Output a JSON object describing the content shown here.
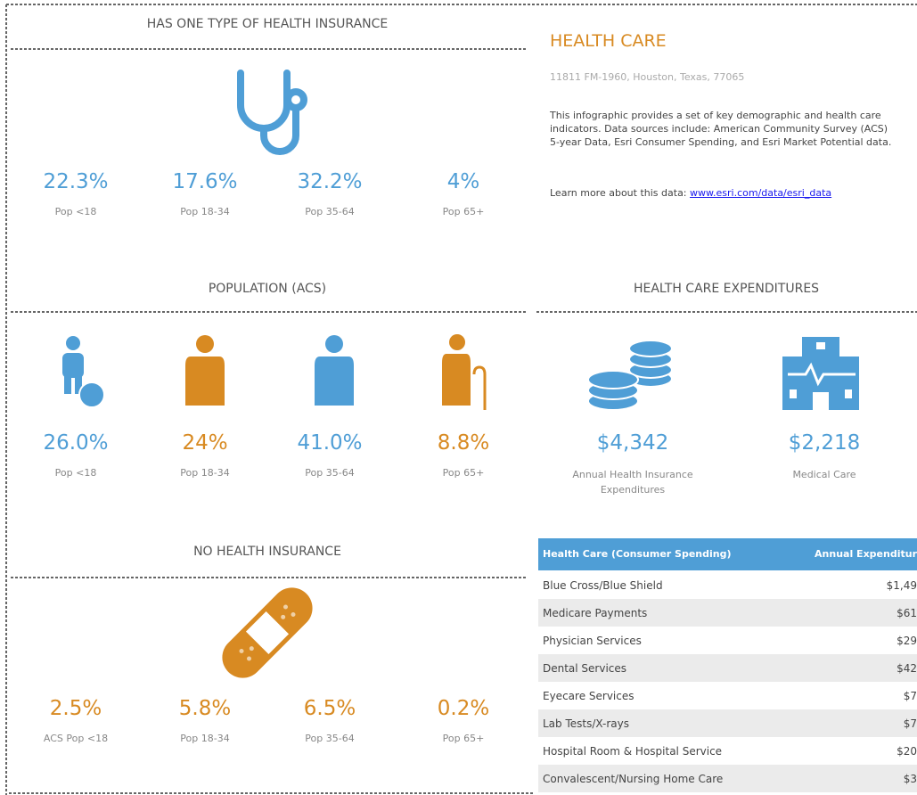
{
  "left": {
    "sections": [
      {
        "title": "HAS ONE TYPE OF HEALTH INSURANCE",
        "stats": [
          {
            "value": "22.3%",
            "label": "Pop <18"
          },
          {
            "value": "17.6%",
            "label": "Pop 18-34"
          },
          {
            "value": "32.2%",
            "label": "Pop 35-64"
          },
          {
            "value": "4%",
            "label": "Pop 65+"
          }
        ]
      },
      {
        "title": "POPULATION (ACS)",
        "stats": [
          {
            "value": "26.0%",
            "label": "Pop <18"
          },
          {
            "value": "24%",
            "label": "Pop 18-34"
          },
          {
            "value": "41.0%",
            "label": "Pop 35-64"
          },
          {
            "value": "8.8%",
            "label": "Pop 65+"
          }
        ]
      },
      {
        "title": "NO HEALTH INSURANCE",
        "stats": [
          {
            "value": "2.5%",
            "label": "ACS Pop <18"
          },
          {
            "value": "5.8%",
            "label": "Pop 18-34"
          },
          {
            "value": "6.5%",
            "label": "Pop 35-64"
          },
          {
            "value": "0.2%",
            "label": "Pop 65+"
          }
        ]
      }
    ]
  },
  "right": {
    "title": "HEALTH CARE",
    "address": "11811 FM-1960, Houston, Texas, 77065",
    "description": "This infographic provides a set of key demographic and health care indicators. Data sources include: American Community Survey (ACS) 5-year Data, Esri Consumer Spending, and Esri Market Potential data.",
    "learn_more": {
      "text": "Learn more about this data:",
      "link": "www.esri.com/data/esri_data"
    },
    "expenditures": {
      "title": "HEALTH CARE EXPENDITURES",
      "stats": [
        {
          "value": "$4,342",
          "label": "Annual Health Insurance Expenditures"
        },
        {
          "value": "$2,218",
          "label": "Medical Care"
        }
      ]
    },
    "table": {
      "header": [
        "Health Care (Consumer Spending)",
        "Annual Expenditur"
      ],
      "rows": [
        [
          "Blue Cross/Blue Shield",
          "$1,49"
        ],
        [
          "Medicare Payments",
          "$61"
        ],
        [
          "Physician Services",
          "$29"
        ],
        [
          "Dental Services",
          "$42"
        ],
        [
          "Eyecare Services",
          "$7"
        ],
        [
          "Lab Tests/X-rays",
          "$7"
        ],
        [
          "Hospital Room & Hospital Service",
          "$20"
        ],
        [
          "Convalescent/Nursing Home Care",
          "$3"
        ]
      ]
    }
  }
}
